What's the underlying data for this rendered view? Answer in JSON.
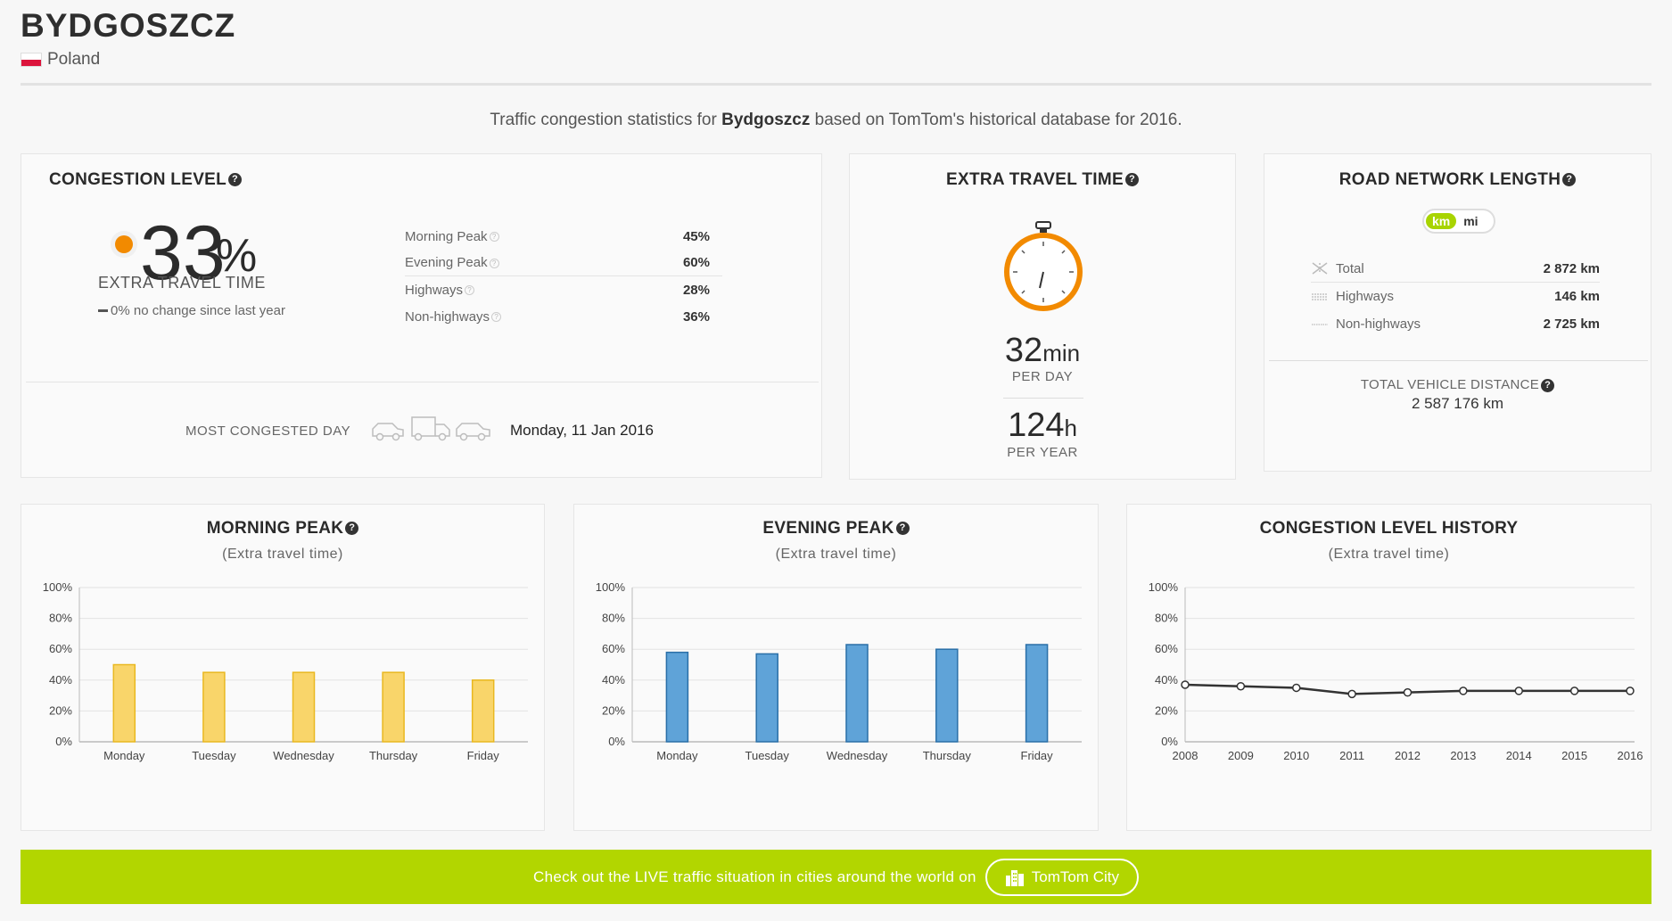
{
  "header": {
    "city": "BYDGOSZCZ",
    "country": "Poland"
  },
  "intro": {
    "prefix": "Traffic congestion statistics for ",
    "city": "Bydgoszcz",
    "suffix": " based on TomTom's historical database for 2016."
  },
  "congestion": {
    "title": "CONGESTION LEVEL",
    "value": "33",
    "unit": "%",
    "label": "EXTRA TRAVEL TIME",
    "change": "0% no change since last year",
    "rows": [
      {
        "label": "Morning Peak",
        "value": "45%"
      },
      {
        "label": "Evening Peak",
        "value": "60%"
      },
      {
        "label": "Highways",
        "value": "28%"
      },
      {
        "label": "Non-highways",
        "value": "36%"
      }
    ],
    "most_congested_label": "MOST CONGESTED DAY",
    "most_congested_value": "Monday, 11 Jan 2016",
    "level_color": "#f28a00"
  },
  "travel": {
    "title": "EXTRA TRAVEL TIME",
    "per_day_value": "32",
    "per_day_unit": "min",
    "per_day_label": "PER DAY",
    "per_year_value": "124",
    "per_year_unit": "h",
    "per_year_label": "PER YEAR"
  },
  "road": {
    "title": "ROAD NETWORK LENGTH",
    "unit_km": "km",
    "unit_mi": "mi",
    "rows": [
      {
        "label": "Total",
        "value": "2 872 km"
      },
      {
        "label": "Highways",
        "value": "146 km"
      },
      {
        "label": "Non-highways",
        "value": "2 725 km"
      }
    ],
    "tvd_label": "TOTAL VEHICLE DISTANCE",
    "tvd_value": "2 587 176 km"
  },
  "charts": {
    "morning": {
      "title": "MORNING PEAK",
      "subtitle": "(Extra travel time)"
    },
    "evening": {
      "title": "EVENING PEAK",
      "subtitle": "(Extra travel time)"
    },
    "history": {
      "title": "CONGESTION LEVEL HISTORY",
      "subtitle": "(Extra travel time)"
    }
  },
  "chart_data": [
    {
      "type": "bar",
      "title": "MORNING PEAK",
      "subtitle": "(Extra travel time)",
      "categories": [
        "Monday",
        "Tuesday",
        "Wednesday",
        "Thursday",
        "Friday"
      ],
      "values": [
        50,
        45,
        45,
        45,
        40
      ],
      "yticks": [
        "0%",
        "20%",
        "40%",
        "60%",
        "80%",
        "100%"
      ],
      "ylim": [
        0,
        100
      ],
      "color": "#f9d56a",
      "stroke": "#e9b820",
      "grid": true
    },
    {
      "type": "bar",
      "title": "EVENING PEAK",
      "subtitle": "(Extra travel time)",
      "categories": [
        "Monday",
        "Tuesday",
        "Wednesday",
        "Thursday",
        "Friday"
      ],
      "values": [
        58,
        57,
        63,
        60,
        63
      ],
      "yticks": [
        "0%",
        "20%",
        "40%",
        "60%",
        "80%",
        "100%"
      ],
      "ylim": [
        0,
        100
      ],
      "color": "#5fa3d8",
      "stroke": "#2a6fa8",
      "grid": true
    },
    {
      "type": "line",
      "title": "CONGESTION LEVEL HISTORY",
      "subtitle": "(Extra travel time)",
      "categories": [
        "2008",
        "2009",
        "2010",
        "2011",
        "2012",
        "2013",
        "2014",
        "2015",
        "2016"
      ],
      "values": [
        37,
        36,
        35,
        31,
        32,
        33,
        33,
        33,
        33
      ],
      "yticks": [
        "0%",
        "20%",
        "40%",
        "60%",
        "80%",
        "100%"
      ],
      "ylim": [
        0,
        100
      ],
      "color": "#333333",
      "grid": true
    }
  ],
  "banner": {
    "text": "Check out the LIVE traffic situation in cities around the world on",
    "button": "TomTom City",
    "color": "#b2d600"
  }
}
